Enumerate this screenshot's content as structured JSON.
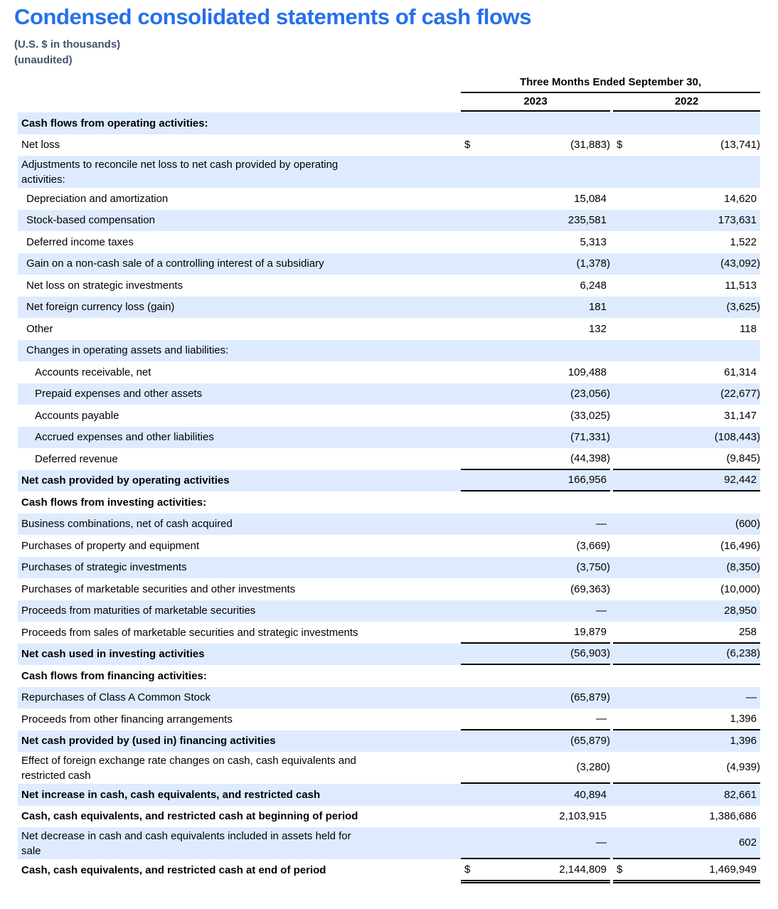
{
  "title": "Condensed consolidated statements of cash flows",
  "subtitle_line1": "(U.S. $ in thousands)",
  "subtitle_line2": "(unaudited)",
  "colors": {
    "title": "#2570EB",
    "subtitle": "#44546F",
    "row_shade": "#DEEBFF",
    "text": "#000000",
    "rule": "#000000"
  },
  "table": {
    "period_header": "Three Months Ended September 30,",
    "columns": [
      "2023",
      "2022"
    ],
    "currency_symbol": "$",
    "rows": [
      {
        "label": "Cash flows from operating activities:",
        "v2023": "",
        "v2022": "",
        "indent": 0,
        "bold": true,
        "shaded": true,
        "dollar": false,
        "border": "none"
      },
      {
        "label": "Net loss",
        "v2023": "(31,883)",
        "v2022": "(13,741)",
        "indent": 0,
        "bold": false,
        "shaded": false,
        "dollar": true,
        "border": "none"
      },
      {
        "label": "Adjustments to reconcile net loss to net cash provided by operating",
        "label2": "activities:",
        "v2023": "",
        "v2022": "",
        "indent": 0,
        "bold": false,
        "shaded": true,
        "dollar": false,
        "border": "none"
      },
      {
        "label": "Depreciation and amortization",
        "v2023": "15,084",
        "v2022": "14,620",
        "indent": 1,
        "bold": false,
        "shaded": false,
        "dollar": false,
        "border": "none"
      },
      {
        "label": "Stock-based compensation",
        "v2023": "235,581",
        "v2022": "173,631",
        "indent": 1,
        "bold": false,
        "shaded": true,
        "dollar": false,
        "border": "none"
      },
      {
        "label": "Deferred income taxes",
        "v2023": "5,313",
        "v2022": "1,522",
        "indent": 1,
        "bold": false,
        "shaded": false,
        "dollar": false,
        "border": "none"
      },
      {
        "label": "Gain on a non-cash sale of a controlling interest of a subsidiary",
        "v2023": "(1,378)",
        "v2022": "(43,092)",
        "indent": 1,
        "bold": false,
        "shaded": true,
        "dollar": false,
        "border": "none"
      },
      {
        "label": "Net loss on strategic investments",
        "v2023": "6,248",
        "v2022": "11,513",
        "indent": 1,
        "bold": false,
        "shaded": false,
        "dollar": false,
        "border": "none"
      },
      {
        "label": "Net foreign currency loss (gain)",
        "v2023": "181",
        "v2022": "(3,625)",
        "indent": 1,
        "bold": false,
        "shaded": true,
        "dollar": false,
        "border": "none"
      },
      {
        "label": "Other",
        "v2023": "132",
        "v2022": "118",
        "indent": 1,
        "bold": false,
        "shaded": false,
        "dollar": false,
        "border": "none"
      },
      {
        "label": "Changes in operating assets and liabilities:",
        "v2023": "",
        "v2022": "",
        "indent": 1,
        "bold": false,
        "shaded": true,
        "dollar": false,
        "border": "none"
      },
      {
        "label": "Accounts receivable, net",
        "v2023": "109,488",
        "v2022": "61,314",
        "indent": 2,
        "bold": false,
        "shaded": false,
        "dollar": false,
        "border": "none"
      },
      {
        "label": "Prepaid expenses and other assets",
        "v2023": "(23,056)",
        "v2022": "(22,677)",
        "indent": 2,
        "bold": false,
        "shaded": true,
        "dollar": false,
        "border": "none"
      },
      {
        "label": "Accounts payable",
        "v2023": "(33,025)",
        "v2022": "31,147",
        "indent": 2,
        "bold": false,
        "shaded": false,
        "dollar": false,
        "border": "none"
      },
      {
        "label": "Accrued expenses and other liabilities",
        "v2023": "(71,331)",
        "v2022": "(108,443)",
        "indent": 2,
        "bold": false,
        "shaded": true,
        "dollar": false,
        "border": "none"
      },
      {
        "label": "Deferred revenue",
        "v2023": "(44,398)",
        "v2022": "(9,845)",
        "indent": 2,
        "bold": false,
        "shaded": false,
        "dollar": false,
        "border": "single"
      },
      {
        "label": "Net cash provided by operating activities",
        "v2023": "166,956",
        "v2022": "92,442",
        "indent": 0,
        "bold": true,
        "shaded": true,
        "dollar": false,
        "border": "single"
      },
      {
        "label": "Cash flows from investing activities:",
        "v2023": "",
        "v2022": "",
        "indent": 0,
        "bold": true,
        "shaded": false,
        "dollar": false,
        "border": "none"
      },
      {
        "label": "Business combinations, net of cash acquired",
        "v2023": "—",
        "v2022": "(600)",
        "indent": 0,
        "bold": false,
        "shaded": true,
        "dollar": false,
        "border": "none"
      },
      {
        "label": "Purchases of property and equipment",
        "v2023": "(3,669)",
        "v2022": "(16,496)",
        "indent": 0,
        "bold": false,
        "shaded": false,
        "dollar": false,
        "border": "none"
      },
      {
        "label": "Purchases of strategic investments",
        "v2023": "(3,750)",
        "v2022": "(8,350)",
        "indent": 0,
        "bold": false,
        "shaded": true,
        "dollar": false,
        "border": "none"
      },
      {
        "label": "Purchases of marketable securities and other investments",
        "v2023": "(69,363)",
        "v2022": "(10,000)",
        "indent": 0,
        "bold": false,
        "shaded": false,
        "dollar": false,
        "border": "none"
      },
      {
        "label": "Proceeds from maturities of marketable securities",
        "v2023": "—",
        "v2022": "28,950",
        "indent": 0,
        "bold": false,
        "shaded": true,
        "dollar": false,
        "border": "none"
      },
      {
        "label": "Proceeds from sales of marketable securities and strategic investments",
        "v2023": "19,879",
        "v2022": "258",
        "indent": 0,
        "bold": false,
        "shaded": false,
        "dollar": false,
        "border": "single"
      },
      {
        "label": "Net cash used in investing activities",
        "v2023": "(56,903)",
        "v2022": "(6,238)",
        "indent": 0,
        "bold": true,
        "shaded": true,
        "dollar": false,
        "border": "single"
      },
      {
        "label": "Cash flows from financing activities:",
        "v2023": "",
        "v2022": "",
        "indent": 0,
        "bold": true,
        "shaded": false,
        "dollar": false,
        "border": "none"
      },
      {
        "label": "Repurchases of Class A Common Stock",
        "v2023": "(65,879)",
        "v2022": "—",
        "indent": 0,
        "bold": false,
        "shaded": true,
        "dollar": false,
        "border": "none"
      },
      {
        "label": "Proceeds from other financing arrangements",
        "v2023": "—",
        "v2022": "1,396",
        "indent": 0,
        "bold": false,
        "shaded": false,
        "dollar": false,
        "border": "single"
      },
      {
        "label": "Net cash provided by (used in) financing activities",
        "v2023": "(65,879)",
        "v2022": "1,396",
        "indent": 0,
        "bold": true,
        "shaded": true,
        "dollar": false,
        "border": "none"
      },
      {
        "label": "Effect of foreign exchange rate changes on cash, cash equivalents and",
        "label2": "restricted cash",
        "v2023": "(3,280)",
        "v2022": "(4,939)",
        "indent": 0,
        "bold": false,
        "shaded": false,
        "dollar": false,
        "border": "single"
      },
      {
        "label": "Net increase in cash, cash equivalents, and restricted cash",
        "v2023": "40,894",
        "v2022": "82,661",
        "indent": 0,
        "bold": true,
        "shaded": true,
        "dollar": false,
        "border": "none"
      },
      {
        "label": "Cash, cash equivalents, and restricted cash at beginning of period",
        "v2023": "2,103,915",
        "v2022": "1,386,686",
        "indent": 0,
        "bold": true,
        "shaded": false,
        "dollar": false,
        "border": "none"
      },
      {
        "label": "Net decrease in cash and cash equivalents included in assets held for",
        "label2": "sale",
        "v2023": "—",
        "v2022": "602",
        "indent": 0,
        "bold": false,
        "shaded": true,
        "dollar": false,
        "border": "single"
      },
      {
        "label": "Cash, cash equivalents, and restricted cash at end of period",
        "v2023": "2,144,809",
        "v2022": "1,469,949",
        "indent": 0,
        "bold": true,
        "shaded": false,
        "dollar": true,
        "border": "double"
      }
    ]
  }
}
